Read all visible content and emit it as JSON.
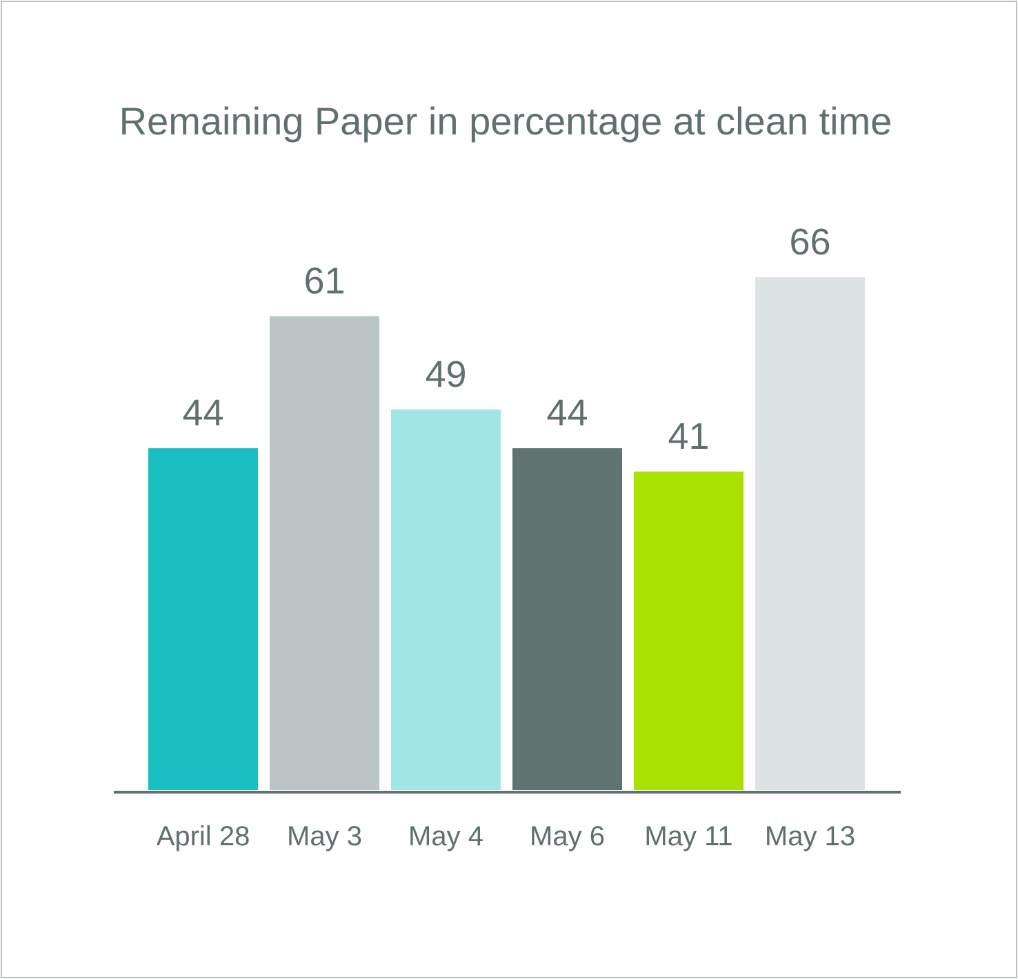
{
  "chart_data": {
    "type": "bar",
    "title": "Remaining Paper in percentage at clean time",
    "categories": [
      "April 28",
      "May 3",
      "May 4",
      "May 6",
      "May 11",
      "May 13"
    ],
    "values": [
      44,
      61,
      49,
      44,
      41,
      66
    ],
    "colors": [
      "#19bfc3",
      "#bbc5c6",
      "#a2e5e5",
      "#5f7370",
      "#a9e200",
      "#dde2e2"
    ],
    "axis_color": "#5f706e",
    "text_color": "#5f706e",
    "data_labels": true,
    "grid": false,
    "legend": "none"
  }
}
